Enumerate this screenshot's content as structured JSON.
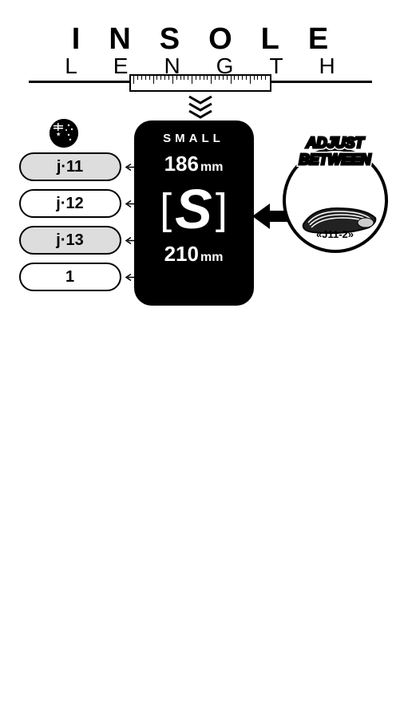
{
  "header": {
    "title": "INSOLE",
    "subtitle": "LENGTH"
  },
  "flag": {
    "name": "australia-flag"
  },
  "sizes": [
    {
      "label": "j·11",
      "style": "filled"
    },
    {
      "label": "j·12",
      "style": "hollow"
    },
    {
      "label": "j·13",
      "style": "filled"
    },
    {
      "label": "1",
      "style": "hollow"
    }
  ],
  "card": {
    "label": "SMALL",
    "min_mm": "186",
    "max_mm": "210",
    "unit": "mm",
    "letter": "S"
  },
  "adjust": {
    "line1": "ADJUST",
    "line2": "BETWEEN",
    "code": "«J11-2»"
  },
  "colors": {
    "bg": "#ffffff",
    "ink": "#000000",
    "pill_fill": "#dddddd"
  }
}
